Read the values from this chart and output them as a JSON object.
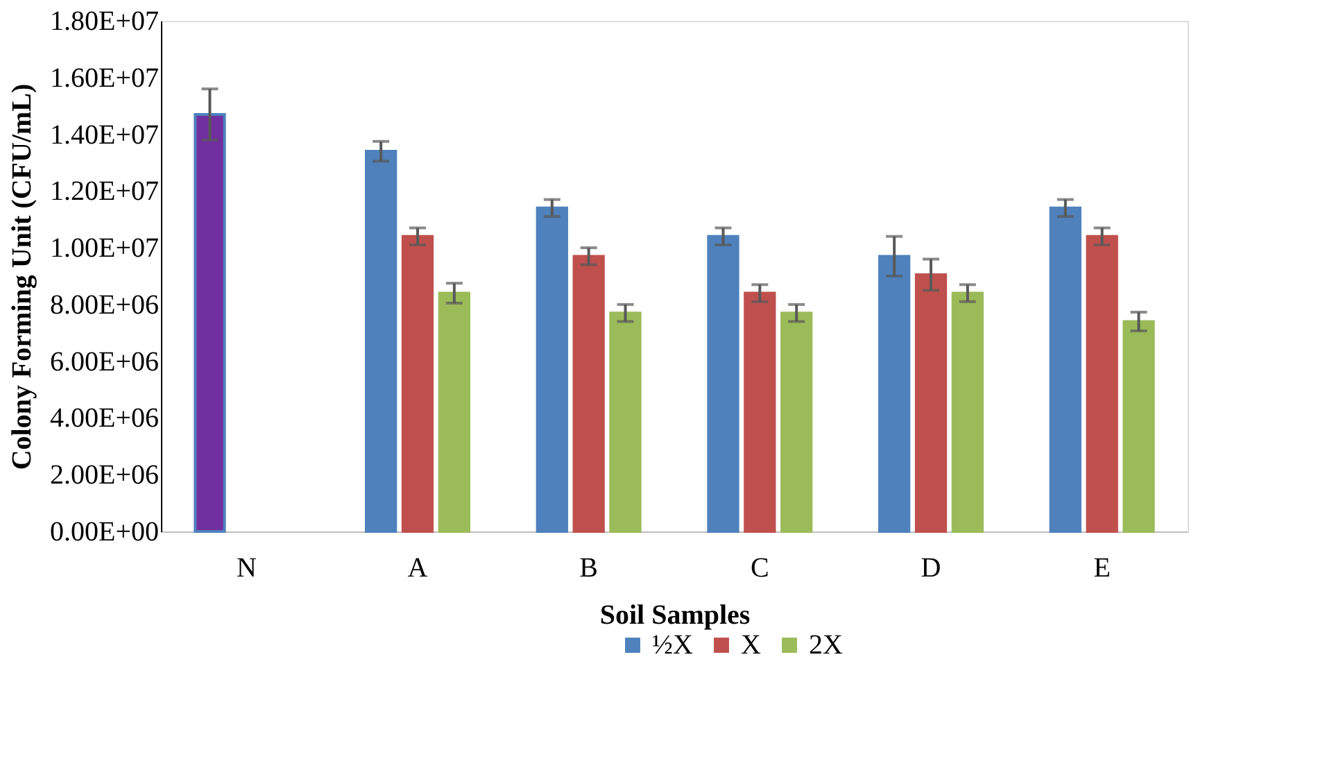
{
  "chart_data": {
    "type": "bar",
    "xlabel": "Soil Samples",
    "ylabel": "Colony Forming Unit (CFU/mL)",
    "categories": [
      "N",
      "A",
      "B",
      "C",
      "D",
      "E"
    ],
    "series": [
      {
        "name": "½X",
        "color": "#4f81bd",
        "colors": [
          "#7030a0",
          "#4f81bd",
          "#4f81bd",
          "#4f81bd",
          "#4f81bd",
          "#4f81bd"
        ],
        "values": [
          14700000,
          13400000,
          11400000,
          10400000,
          9700000,
          11400000
        ],
        "errors": [
          900000,
          350000,
          300000,
          300000,
          700000,
          300000
        ]
      },
      {
        "name": "X",
        "color": "#c0504d",
        "values": [
          null,
          10400000,
          9700000,
          8400000,
          9050000,
          10400000
        ],
        "errors": [
          null,
          300000,
          300000,
          300000,
          550000,
          300000
        ]
      },
      {
        "name": "2X",
        "color": "#9bbb59",
        "values": [
          null,
          8400000,
          7700000,
          7700000,
          8400000,
          7400000
        ],
        "errors": [
          null,
          350000,
          300000,
          300000,
          300000,
          330000
        ]
      }
    ],
    "ylim": [
      0,
      18000000
    ],
    "yticks": [
      {
        "value": 0,
        "label": "0.00E+00"
      },
      {
        "value": 2000000,
        "label": "2.00E+06"
      },
      {
        "value": 4000000,
        "label": "4.00E+06"
      },
      {
        "value": 6000000,
        "label": "6.00E+06"
      },
      {
        "value": 8000000,
        "label": "8.00E+06"
      },
      {
        "value": 10000000,
        "label": "1.00E+07"
      },
      {
        "value": 12000000,
        "label": "1.20E+07"
      },
      {
        "value": 14000000,
        "label": "1.40E+07"
      },
      {
        "value": 16000000,
        "label": "1.60E+07"
      },
      {
        "value": 18000000,
        "label": "1.80E+07"
      }
    ],
    "grid": false,
    "legend": "bottom"
  }
}
